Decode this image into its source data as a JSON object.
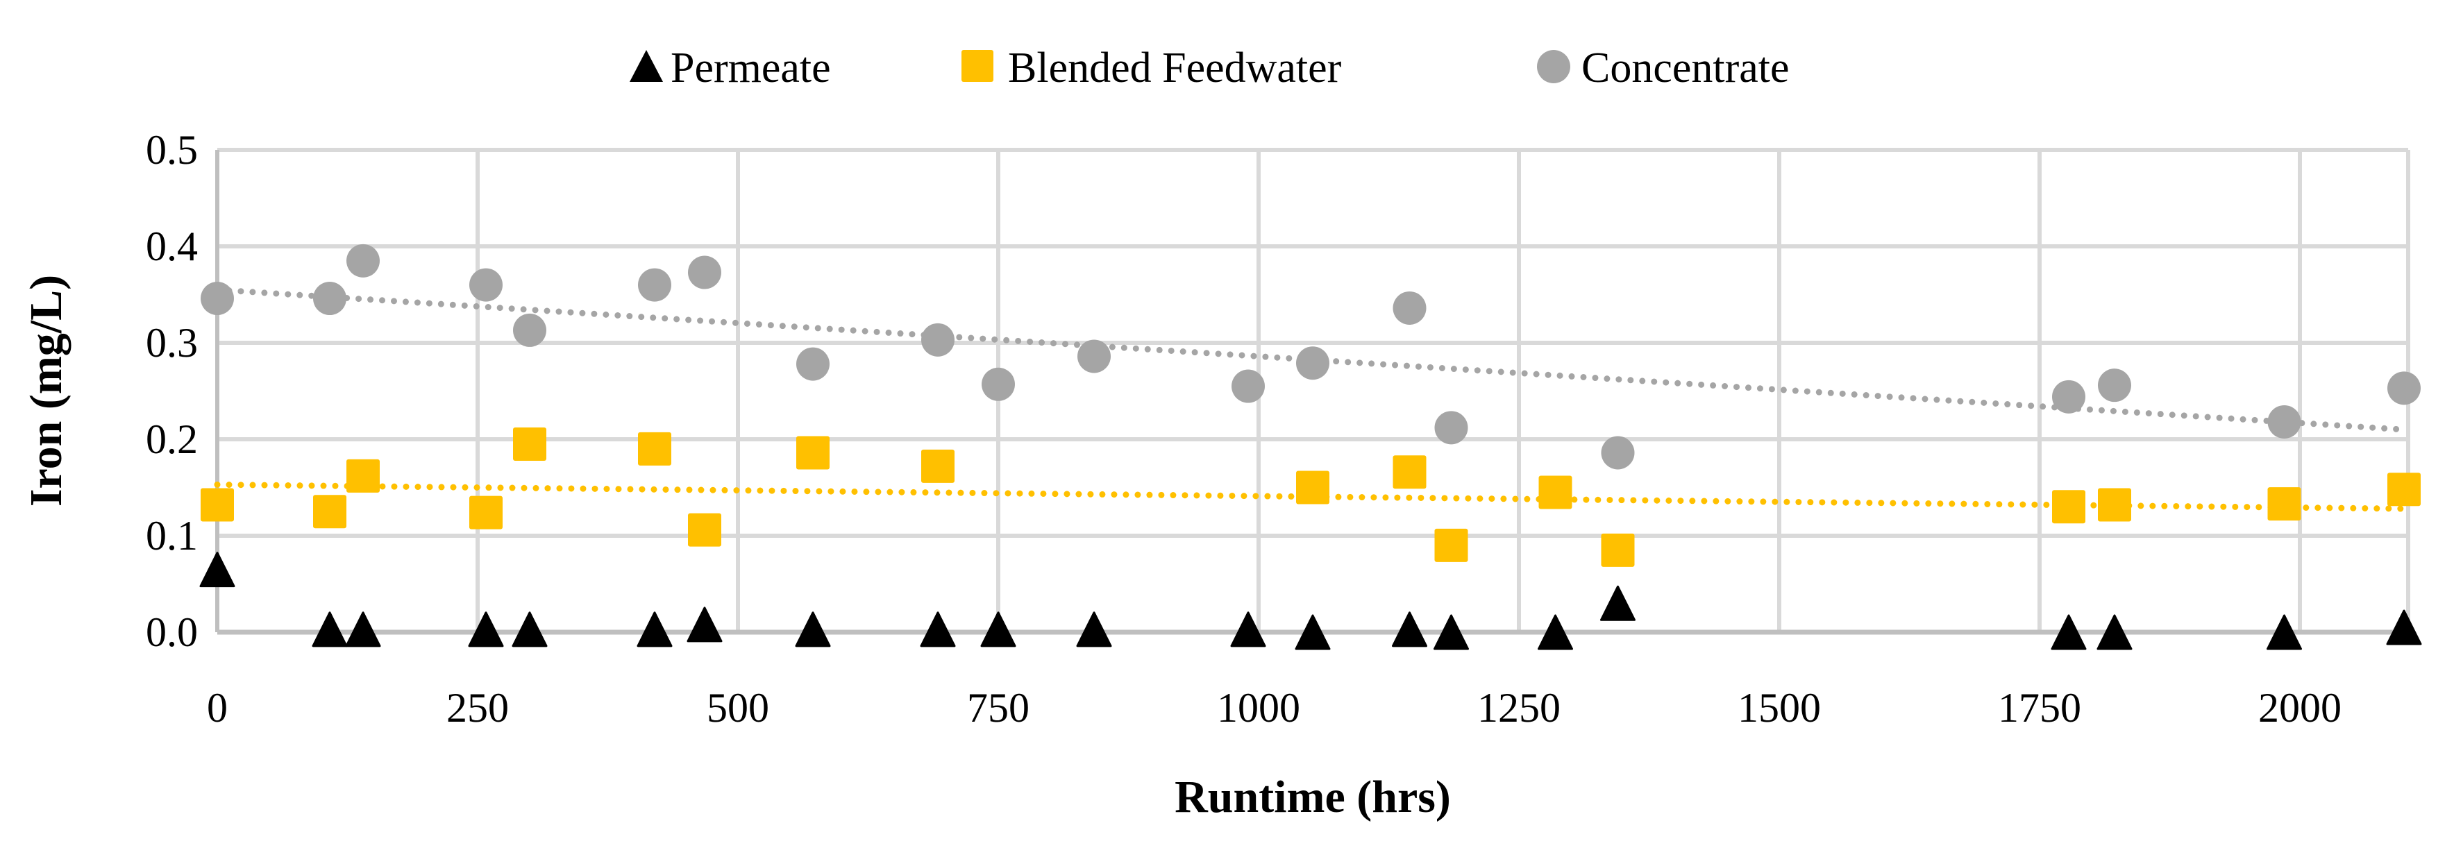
{
  "chart_data": {
    "type": "scatter",
    "title": "",
    "xlabel": "Runtime (hrs)",
    "ylabel": "Iron (mg/L)",
    "xlim": [
      0,
      2104
    ],
    "ylim": [
      0,
      0.5
    ],
    "grid": true,
    "legend_position": "top-center",
    "x_ticks": [
      "0",
      "250",
      "500",
      "750",
      "1000",
      "1250",
      "1500",
      "1750",
      "2000"
    ],
    "x_tick_values": [
      0,
      250,
      500,
      750,
      1000,
      1250,
      1500,
      1750,
      2000
    ],
    "y_ticks": [
      "0.0",
      "0.1",
      "0.2",
      "0.3",
      "0.4",
      "0.5"
    ],
    "y_tick_values": [
      0,
      0.1,
      0.2,
      0.3,
      0.4,
      0.5
    ],
    "series": [
      {
        "name": "Permeate",
        "marker": "triangle",
        "color": "#000000",
        "points": [
          [
            0,
            0.065
          ],
          [
            108,
            0.003
          ],
          [
            140,
            0.003
          ],
          [
            258,
            0.003
          ],
          [
            300,
            0.003
          ],
          [
            420,
            0.003
          ],
          [
            468,
            0.008
          ],
          [
            572,
            0.003
          ],
          [
            692,
            0.003
          ],
          [
            750,
            0.003
          ],
          [
            842,
            0.003
          ],
          [
            990,
            0.003
          ],
          [
            1052,
            0.0
          ],
          [
            1145,
            0.003
          ],
          [
            1185,
            0.0
          ],
          [
            1285,
            0.0
          ],
          [
            1345,
            0.03
          ],
          [
            1778,
            0.0
          ],
          [
            1822,
            0.0
          ],
          [
            1985,
            0.0
          ],
          [
            2100,
            0.005
          ]
        ]
      },
      {
        "name": "Blended Feedwater",
        "marker": "square",
        "color": "#FFC000",
        "trendline": [
          [
            0,
            0.153
          ],
          [
            2100,
            0.128
          ]
        ],
        "points": [
          [
            0,
            0.132
          ],
          [
            108,
            0.125
          ],
          [
            140,
            0.162
          ],
          [
            258,
            0.124
          ],
          [
            300,
            0.195
          ],
          [
            420,
            0.19
          ],
          [
            468,
            0.106
          ],
          [
            572,
            0.186
          ],
          [
            692,
            0.172
          ],
          [
            1052,
            0.15
          ],
          [
            1145,
            0.166
          ],
          [
            1185,
            0.09
          ],
          [
            1285,
            0.145
          ],
          [
            1345,
            0.085
          ],
          [
            1778,
            0.13
          ],
          [
            1822,
            0.132
          ],
          [
            1985,
            0.133
          ],
          [
            2100,
            0.148
          ]
        ]
      },
      {
        "name": "Concentrate",
        "marker": "circle",
        "color": "#A5A5A5",
        "trendline": [
          [
            0,
            0.355
          ],
          [
            2100,
            0.21
          ]
        ],
        "points": [
          [
            0,
            0.346
          ],
          [
            108,
            0.346
          ],
          [
            140,
            0.385
          ],
          [
            258,
            0.36
          ],
          [
            300,
            0.313
          ],
          [
            420,
            0.36
          ],
          [
            468,
            0.373
          ],
          [
            572,
            0.278
          ],
          [
            692,
            0.303
          ],
          [
            750,
            0.257
          ],
          [
            842,
            0.286
          ],
          [
            990,
            0.255
          ],
          [
            1052,
            0.279
          ],
          [
            1145,
            0.336
          ],
          [
            1185,
            0.212
          ],
          [
            1345,
            0.186
          ],
          [
            1778,
            0.244
          ],
          [
            1822,
            0.256
          ],
          [
            1985,
            0.218
          ],
          [
            2100,
            0.253
          ]
        ]
      }
    ]
  }
}
